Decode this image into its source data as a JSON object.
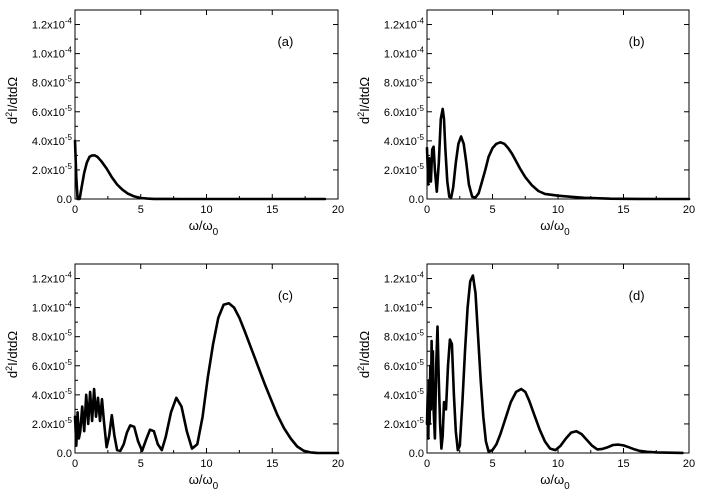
{
  "chart_data": [
    {
      "type": "line",
      "panel_label": "(a)",
      "xlabel": "ω/ω0",
      "ylabel": "d2I/dtdΩ",
      "xlim": [
        0,
        20
      ],
      "ylim": [
        0,
        0.00013
      ],
      "x_ticks": [
        "0",
        "5",
        "10",
        "15",
        "20"
      ],
      "y_ticks": [
        "0.0",
        "2.0x10-5",
        "4.0x10-5",
        "6.0x10-5",
        "8.0x10-5",
        "1.0x10-4",
        "1.2x10-4"
      ],
      "x": [
        0,
        0.1,
        0.2,
        0.35,
        0.5,
        0.7,
        0.9,
        1.1,
        1.3,
        1.5,
        1.7,
        2.0,
        2.4,
        2.8,
        3.2,
        3.6,
        4.0,
        4.5,
        5.0,
        5.5,
        6,
        7,
        8,
        10,
        12,
        15,
        19
      ],
      "y": [
        4e-05,
        1.5e-05,
        0.0,
        0.0,
        8e-06,
        1.8e-05,
        2.5e-05,
        2.9e-05,
        3e-05,
        3e-05,
        2.9e-05,
        2.6e-05,
        2.1e-05,
        1.5e-05,
        1e-05,
        6.5e-06,
        3.8e-06,
        1.8e-06,
        7e-07,
        3e-07,
        1e-07,
        5e-08,
        2e-08,
        1e-08,
        1e-08,
        0.0,
        0.0
      ]
    },
    {
      "type": "line",
      "panel_label": "(b)",
      "xlabel": "ω/ω0",
      "ylabel": "d2I/dtdΩ",
      "xlim": [
        0,
        20
      ],
      "ylim": [
        0,
        0.00013
      ],
      "x_ticks": [
        "0",
        "5",
        "10",
        "15",
        "20"
      ],
      "y_ticks": [
        "0.0",
        "2.0x10-5",
        "4.0x10-5",
        "6.0x10-5",
        "8.0x10-5",
        "1.0x10-4",
        "1.2x10-4"
      ],
      "x": [
        0,
        0.1,
        0.2,
        0.3,
        0.4,
        0.5,
        0.6,
        0.75,
        0.9,
        1.05,
        1.2,
        1.3,
        1.4,
        1.55,
        1.7,
        1.85,
        2.0,
        2.2,
        2.4,
        2.6,
        2.8,
        3.0,
        3.2,
        3.45,
        3.7,
        3.95,
        4.2,
        4.45,
        4.7,
        5.0,
        5.3,
        5.6,
        5.9,
        6.2,
        6.5,
        6.8,
        7.1,
        7.5,
        8.0,
        8.5,
        9.0,
        10.0,
        11.0,
        12.0,
        14.0,
        16.0,
        18.0,
        20.0
      ],
      "y": [
        3.5e-05,
        1e-05,
        2.8e-05,
        1.2e-05,
        3.4e-05,
        3.6e-05,
        2e-05,
        5e-06,
        2.5e-05,
        5.5e-05,
        6.2e-05,
        5.5e-05,
        3.5e-05,
        1.2e-05,
        1.5e-06,
        1e-06,
        8e-06,
        2.5e-05,
        3.8e-05,
        4.3e-05,
        3.8e-05,
        2.5e-05,
        1e-05,
        1.5e-06,
        1e-06,
        4e-06,
        1.2e-05,
        2e-05,
        2.9e-05,
        3.5e-05,
        3.8e-05,
        3.9e-05,
        3.8e-05,
        3.5e-05,
        3.1e-05,
        2.6e-05,
        2.1e-05,
        1.5e-05,
        9.5e-06,
        5.5e-06,
        3.5e-06,
        2.3e-06,
        1.5e-06,
        8e-07,
        2e-07,
        1e-07,
        0.0,
        0.0
      ]
    },
    {
      "type": "line",
      "panel_label": "(c)",
      "xlabel": "ω/ω0",
      "ylabel": "d2I/dtdΩ",
      "xlim": [
        0,
        20
      ],
      "ylim": [
        0,
        0.00013
      ],
      "x_ticks": [
        "0",
        "5",
        "10",
        "15",
        "20"
      ],
      "y_ticks": [
        "0.0",
        "2.0x10-5",
        "4.0x10-5",
        "6.0x10-5",
        "8.0x10-5",
        "1.0x10-4",
        "1.2x10-4"
      ],
      "x": [
        0,
        0.1,
        0.2,
        0.3,
        0.4,
        0.55,
        0.7,
        0.85,
        1.0,
        1.15,
        1.3,
        1.45,
        1.6,
        1.75,
        1.9,
        2.05,
        2.2,
        2.4,
        2.6,
        2.8,
        3.0,
        3.2,
        3.45,
        3.7,
        3.95,
        4.2,
        4.5,
        4.8,
        5.1,
        5.4,
        5.7,
        6.0,
        6.3,
        6.6,
        6.9,
        7.3,
        7.7,
        8.1,
        8.5,
        8.9,
        9.3,
        9.7,
        10.1,
        10.5,
        10.9,
        11.3,
        11.7,
        12.1,
        12.5,
        12.9,
        13.4,
        13.9,
        14.4,
        14.9,
        15.4,
        15.9,
        16.4,
        16.9,
        17.4,
        17.9,
        18.4,
        19.0,
        20.0
      ],
      "y": [
        2.5e-05,
        5e-06,
        2.8e-05,
        1e-05,
        1.5e-05,
        3.2e-05,
        1.5e-05,
        4e-05,
        2e-05,
        4.2e-05,
        2.2e-05,
        4.4e-05,
        2.5e-05,
        3.8e-05,
        2.2e-05,
        3.7e-05,
        2.2e-05,
        4e-06,
        1.2e-05,
        2.6e-05,
        1.2e-05,
        2e-06,
        1.5e-06,
        6e-06,
        1.4e-05,
        1.9e-05,
        1.8e-05,
        8e-06,
        1.5e-06,
        9e-06,
        1.6e-05,
        1.5e-05,
        6e-06,
        2e-06,
        1.1e-05,
        2.8e-05,
        3.8e-05,
        3.2e-05,
        1.5e-05,
        3e-06,
        6e-06,
        2.5e-05,
        5.2e-05,
        7.5e-05,
        9.3e-05,
        0.000102,
        0.000103,
        0.0001,
        9.3e-05,
        8.4e-05,
        7.2e-05,
        6e-05,
        4.8e-05,
        3.7e-05,
        2.6e-05,
        1.7e-05,
        1e-05,
        4.5e-06,
        1.5e-06,
        4e-07,
        1e-07,
        0.0,
        0.0
      ]
    },
    {
      "type": "line",
      "panel_label": "(d)",
      "xlabel": "ω/ω0",
      "ylabel": "d2I/dtdΩ",
      "xlim": [
        0,
        20
      ],
      "ylim": [
        0,
        0.00013
      ],
      "x_ticks": [
        "0",
        "5",
        "10",
        "15",
        "20"
      ],
      "y_ticks": [
        "0.0",
        "2.0x10-5",
        "4.0x10-5",
        "6.0x10-5",
        "8.0x10-5",
        "1.0x10-4",
        "1.2x10-4"
      ],
      "x": [
        0,
        0.05,
        0.1,
        0.15,
        0.2,
        0.25,
        0.3,
        0.35,
        0.4,
        0.45,
        0.5,
        0.6,
        0.7,
        0.8,
        0.9,
        1.0,
        1.1,
        1.2,
        1.3,
        1.45,
        1.6,
        1.75,
        1.9,
        2.05,
        2.2,
        2.35,
        2.5,
        2.7,
        2.9,
        3.1,
        3.3,
        3.5,
        3.7,
        3.9,
        4.1,
        4.3,
        4.5,
        4.7,
        5.0,
        5.3,
        5.6,
        6.0,
        6.4,
        6.8,
        7.2,
        7.5,
        7.8,
        8.2,
        8.6,
        9.0,
        9.4,
        9.8,
        10.2,
        10.6,
        11.0,
        11.4,
        11.8,
        12.2,
        12.6,
        13.0,
        13.4,
        13.8,
        14.2,
        14.6,
        15.0,
        15.4,
        15.8,
        16.2,
        16.8,
        17.5,
        18.5,
        19.5
      ],
      "y": [
        2e-05,
        4e-05,
        1e-05,
        5e-05,
        2e-05,
        6e-05,
        3e-05,
        7.7e-05,
        4e-05,
        7e-05,
        3e-05,
        1e-05,
        6e-05,
        8.7e-05,
        5e-05,
        2e-05,
        3e-06,
        1.2e-05,
        3.5e-05,
        3e-05,
        6e-05,
        7.8e-05,
        7.5e-05,
        4e-05,
        1.5e-05,
        2e-06,
        5e-06,
        3.5e-05,
        7e-05,
        0.0001,
        0.000118,
        0.000122,
        0.00011,
        8e-05,
        5e-05,
        2.5e-05,
        8e-06,
        1e-06,
        2e-06,
        6e-06,
        1.3e-05,
        2.4e-05,
        3.5e-05,
        4.2e-05,
        4.4e-05,
        4.2e-05,
        3.6e-05,
        2.6e-05,
        1.6e-05,
        8e-06,
        3e-06,
        2e-06,
        5e-06,
        1e-05,
        1.4e-05,
        1.5e-05,
        1.3e-05,
        9e-06,
        5e-06,
        2.5e-06,
        2.8e-06,
        4e-06,
        5.5e-06,
        5.8e-06,
        5.2e-06,
        4e-06,
        2.6e-06,
        1.5e-06,
        8e-07,
        4e-07,
        2e-07,
        1e-07
      ]
    }
  ]
}
